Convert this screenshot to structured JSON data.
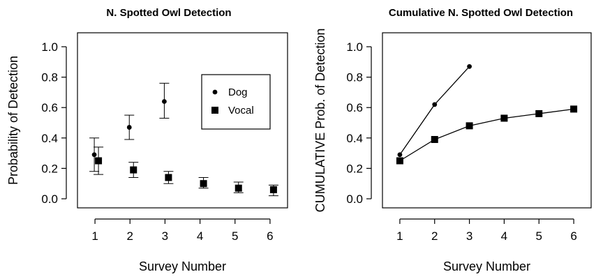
{
  "chart_data": [
    {
      "type": "scatter",
      "title": "N. Spotted Owl Detection",
      "xlabel": "Survey Number",
      "ylabel": "Probability of Detection",
      "xlim": [
        0.5,
        6.5
      ],
      "ylim": [
        0,
        1
      ],
      "x_ticks": [
        1,
        2,
        3,
        4,
        5,
        6
      ],
      "y_ticks": [
        0.0,
        0.2,
        0.4,
        0.6,
        0.8,
        1.0
      ],
      "x_tick_labels": [
        "1",
        "2",
        "3",
        "4",
        "5",
        "6"
      ],
      "y_tick_labels": [
        "0.0",
        "0.2",
        "0.4",
        "0.6",
        "0.8",
        "1.0"
      ],
      "legend": {
        "position": "top-right",
        "entries": [
          "Dog",
          "Vocal"
        ]
      },
      "series": [
        {
          "name": "Dog",
          "marker": "circle",
          "x": [
            1,
            2,
            3
          ],
          "y": [
            0.29,
            0.47,
            0.64
          ],
          "lower": [
            0.18,
            0.39,
            0.53
          ],
          "upper": [
            0.4,
            0.55,
            0.76
          ]
        },
        {
          "name": "Vocal",
          "marker": "square",
          "x": [
            1,
            2,
            3,
            4,
            5,
            6
          ],
          "y": [
            0.25,
            0.19,
            0.14,
            0.1,
            0.07,
            0.06
          ],
          "lower": [
            0.16,
            0.14,
            0.1,
            0.07,
            0.04,
            0.02
          ],
          "upper": [
            0.34,
            0.24,
            0.18,
            0.14,
            0.11,
            0.09
          ]
        }
      ]
    },
    {
      "type": "line",
      "title": "Cumulative N. Spotted Owl Detection",
      "xlabel": "Survey Number",
      "ylabel": "CUMULATIVE Prob. of Detection",
      "xlim": [
        0.5,
        6.5
      ],
      "ylim": [
        0,
        1
      ],
      "x_ticks": [
        1,
        2,
        3,
        4,
        5,
        6
      ],
      "y_ticks": [
        0.0,
        0.2,
        0.4,
        0.6,
        0.8,
        1.0
      ],
      "x_tick_labels": [
        "1",
        "2",
        "3",
        "4",
        "5",
        "6"
      ],
      "y_tick_labels": [
        "0.0",
        "0.2",
        "0.4",
        "0.6",
        "0.8",
        "1.0"
      ],
      "series": [
        {
          "name": "Dog",
          "marker": "circle",
          "x": [
            1,
            2,
            3
          ],
          "y": [
            0.29,
            0.62,
            0.87
          ]
        },
        {
          "name": "Vocal",
          "marker": "square",
          "x": [
            1,
            2,
            3,
            4,
            5,
            6
          ],
          "y": [
            0.25,
            0.39,
            0.48,
            0.53,
            0.56,
            0.59
          ]
        }
      ]
    }
  ]
}
